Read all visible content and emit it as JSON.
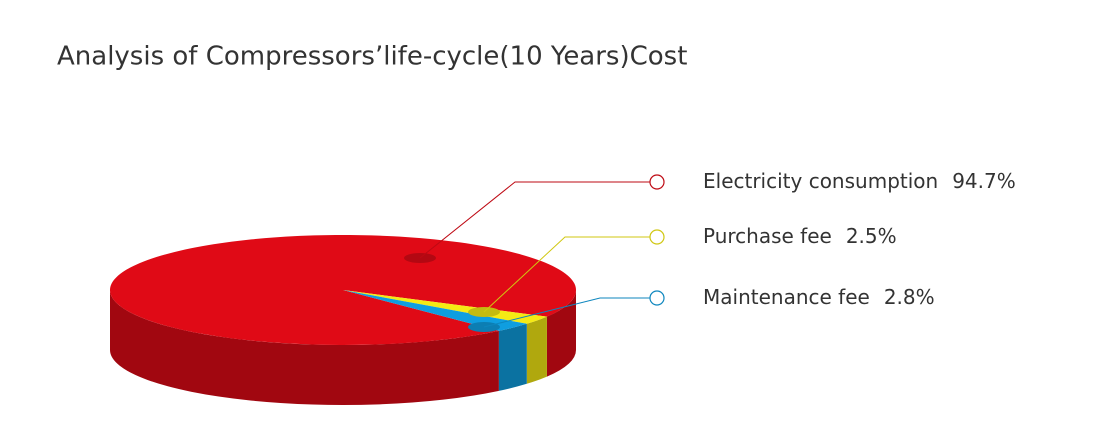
{
  "chart_data": {
    "type": "pie",
    "title": "Analysis of Compressors’life-cycle(10 Years)Cost",
    "categories": [
      "Electricity consumption",
      "Purchase fee",
      "Maintenance fee"
    ],
    "values": [
      94.7,
      2.5,
      2.8
    ],
    "value_labels": [
      "94.7%",
      "2.5%",
      "2.8%"
    ],
    "colors": [
      "#e00a16",
      "#f5ea14",
      "#0f9ee0"
    ]
  }
}
